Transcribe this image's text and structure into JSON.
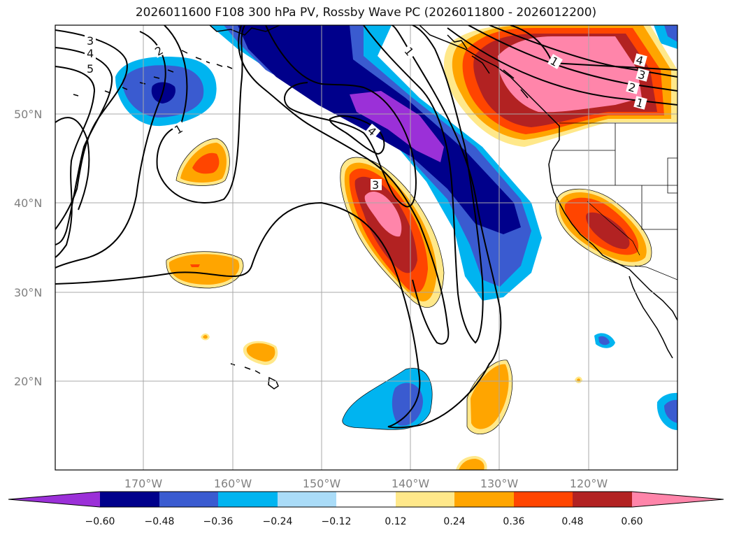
{
  "title": "2026011600 F108 300 hPa PV, Rossby Wave PC (2026011800 - 2026012200)",
  "map": {
    "lat_labels": [
      "50°N",
      "40°N",
      "30°N",
      "20°N"
    ],
    "lon_labels": [
      "170°W",
      "160°W",
      "150°W",
      "140°W",
      "130°W",
      "120°W"
    ]
  },
  "contour_labels": [
    "3",
    "4",
    "5",
    "2",
    "1",
    "1",
    "4",
    "3",
    "1",
    "4",
    "3",
    "2",
    "1"
  ],
  "colorbar": {
    "ticks": [
      "−0.60",
      "−0.48",
      "−0.36",
      "−0.24",
      "−0.12",
      "0.12",
      "0.24",
      "0.36",
      "0.48",
      "0.60"
    ],
    "colors": [
      "#9b30d8",
      "#00008b",
      "#3a5bd0",
      "#00b4f0",
      "#aadcf8",
      "#ffffff",
      "#ffe88a",
      "#ffa500",
      "#ff4500",
      "#b22222",
      "#ff85aa"
    ]
  }
}
